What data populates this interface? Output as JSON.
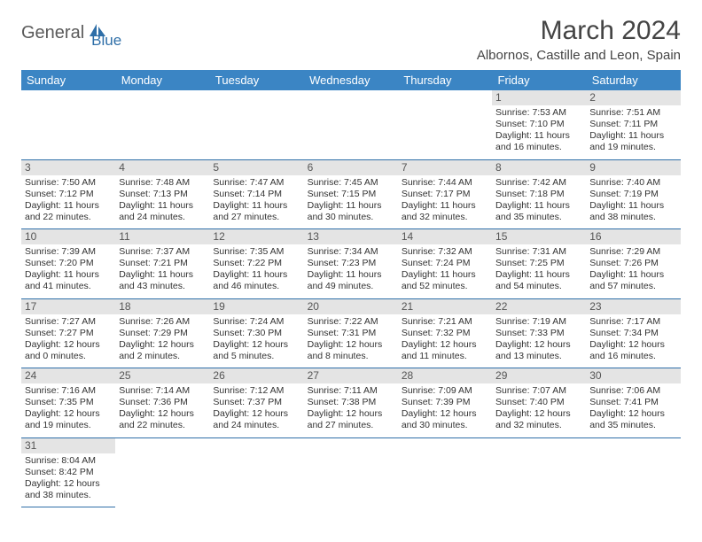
{
  "logo": {
    "word1": "General",
    "word2": "Blue"
  },
  "title": "March 2024",
  "subtitle": "Albornos, Castille and Leon, Spain",
  "colors": {
    "header_bg": "#3b85c4",
    "header_text": "#ffffff",
    "rule": "#2f6fa8",
    "daynum_bg": "#e4e4e4",
    "logo_accent": "#2f6fa8"
  },
  "weekdays": [
    "Sunday",
    "Monday",
    "Tuesday",
    "Wednesday",
    "Thursday",
    "Friday",
    "Saturday"
  ],
  "weeks": [
    [
      null,
      null,
      null,
      null,
      null,
      {
        "n": "1",
        "sr": "Sunrise: 7:53 AM",
        "ss": "Sunset: 7:10 PM",
        "d1": "Daylight: 11 hours",
        "d2": "and 16 minutes."
      },
      {
        "n": "2",
        "sr": "Sunrise: 7:51 AM",
        "ss": "Sunset: 7:11 PM",
        "d1": "Daylight: 11 hours",
        "d2": "and 19 minutes."
      }
    ],
    [
      {
        "n": "3",
        "sr": "Sunrise: 7:50 AM",
        "ss": "Sunset: 7:12 PM",
        "d1": "Daylight: 11 hours",
        "d2": "and 22 minutes."
      },
      {
        "n": "4",
        "sr": "Sunrise: 7:48 AM",
        "ss": "Sunset: 7:13 PM",
        "d1": "Daylight: 11 hours",
        "d2": "and 24 minutes."
      },
      {
        "n": "5",
        "sr": "Sunrise: 7:47 AM",
        "ss": "Sunset: 7:14 PM",
        "d1": "Daylight: 11 hours",
        "d2": "and 27 minutes."
      },
      {
        "n": "6",
        "sr": "Sunrise: 7:45 AM",
        "ss": "Sunset: 7:15 PM",
        "d1": "Daylight: 11 hours",
        "d2": "and 30 minutes."
      },
      {
        "n": "7",
        "sr": "Sunrise: 7:44 AM",
        "ss": "Sunset: 7:17 PM",
        "d1": "Daylight: 11 hours",
        "d2": "and 32 minutes."
      },
      {
        "n": "8",
        "sr": "Sunrise: 7:42 AM",
        "ss": "Sunset: 7:18 PM",
        "d1": "Daylight: 11 hours",
        "d2": "and 35 minutes."
      },
      {
        "n": "9",
        "sr": "Sunrise: 7:40 AM",
        "ss": "Sunset: 7:19 PM",
        "d1": "Daylight: 11 hours",
        "d2": "and 38 minutes."
      }
    ],
    [
      {
        "n": "10",
        "sr": "Sunrise: 7:39 AM",
        "ss": "Sunset: 7:20 PM",
        "d1": "Daylight: 11 hours",
        "d2": "and 41 minutes."
      },
      {
        "n": "11",
        "sr": "Sunrise: 7:37 AM",
        "ss": "Sunset: 7:21 PM",
        "d1": "Daylight: 11 hours",
        "d2": "and 43 minutes."
      },
      {
        "n": "12",
        "sr": "Sunrise: 7:35 AM",
        "ss": "Sunset: 7:22 PM",
        "d1": "Daylight: 11 hours",
        "d2": "and 46 minutes."
      },
      {
        "n": "13",
        "sr": "Sunrise: 7:34 AM",
        "ss": "Sunset: 7:23 PM",
        "d1": "Daylight: 11 hours",
        "d2": "and 49 minutes."
      },
      {
        "n": "14",
        "sr": "Sunrise: 7:32 AM",
        "ss": "Sunset: 7:24 PM",
        "d1": "Daylight: 11 hours",
        "d2": "and 52 minutes."
      },
      {
        "n": "15",
        "sr": "Sunrise: 7:31 AM",
        "ss": "Sunset: 7:25 PM",
        "d1": "Daylight: 11 hours",
        "d2": "and 54 minutes."
      },
      {
        "n": "16",
        "sr": "Sunrise: 7:29 AM",
        "ss": "Sunset: 7:26 PM",
        "d1": "Daylight: 11 hours",
        "d2": "and 57 minutes."
      }
    ],
    [
      {
        "n": "17",
        "sr": "Sunrise: 7:27 AM",
        "ss": "Sunset: 7:27 PM",
        "d1": "Daylight: 12 hours",
        "d2": "and 0 minutes."
      },
      {
        "n": "18",
        "sr": "Sunrise: 7:26 AM",
        "ss": "Sunset: 7:29 PM",
        "d1": "Daylight: 12 hours",
        "d2": "and 2 minutes."
      },
      {
        "n": "19",
        "sr": "Sunrise: 7:24 AM",
        "ss": "Sunset: 7:30 PM",
        "d1": "Daylight: 12 hours",
        "d2": "and 5 minutes."
      },
      {
        "n": "20",
        "sr": "Sunrise: 7:22 AM",
        "ss": "Sunset: 7:31 PM",
        "d1": "Daylight: 12 hours",
        "d2": "and 8 minutes."
      },
      {
        "n": "21",
        "sr": "Sunrise: 7:21 AM",
        "ss": "Sunset: 7:32 PM",
        "d1": "Daylight: 12 hours",
        "d2": "and 11 minutes."
      },
      {
        "n": "22",
        "sr": "Sunrise: 7:19 AM",
        "ss": "Sunset: 7:33 PM",
        "d1": "Daylight: 12 hours",
        "d2": "and 13 minutes."
      },
      {
        "n": "23",
        "sr": "Sunrise: 7:17 AM",
        "ss": "Sunset: 7:34 PM",
        "d1": "Daylight: 12 hours",
        "d2": "and 16 minutes."
      }
    ],
    [
      {
        "n": "24",
        "sr": "Sunrise: 7:16 AM",
        "ss": "Sunset: 7:35 PM",
        "d1": "Daylight: 12 hours",
        "d2": "and 19 minutes."
      },
      {
        "n": "25",
        "sr": "Sunrise: 7:14 AM",
        "ss": "Sunset: 7:36 PM",
        "d1": "Daylight: 12 hours",
        "d2": "and 22 minutes."
      },
      {
        "n": "26",
        "sr": "Sunrise: 7:12 AM",
        "ss": "Sunset: 7:37 PM",
        "d1": "Daylight: 12 hours",
        "d2": "and 24 minutes."
      },
      {
        "n": "27",
        "sr": "Sunrise: 7:11 AM",
        "ss": "Sunset: 7:38 PM",
        "d1": "Daylight: 12 hours",
        "d2": "and 27 minutes."
      },
      {
        "n": "28",
        "sr": "Sunrise: 7:09 AM",
        "ss": "Sunset: 7:39 PM",
        "d1": "Daylight: 12 hours",
        "d2": "and 30 minutes."
      },
      {
        "n": "29",
        "sr": "Sunrise: 7:07 AM",
        "ss": "Sunset: 7:40 PM",
        "d1": "Daylight: 12 hours",
        "d2": "and 32 minutes."
      },
      {
        "n": "30",
        "sr": "Sunrise: 7:06 AM",
        "ss": "Sunset: 7:41 PM",
        "d1": "Daylight: 12 hours",
        "d2": "and 35 minutes."
      }
    ],
    [
      {
        "n": "31",
        "sr": "Sunrise: 8:04 AM",
        "ss": "Sunset: 8:42 PM",
        "d1": "Daylight: 12 hours",
        "d2": "and 38 minutes."
      },
      null,
      null,
      null,
      null,
      null,
      null
    ]
  ]
}
